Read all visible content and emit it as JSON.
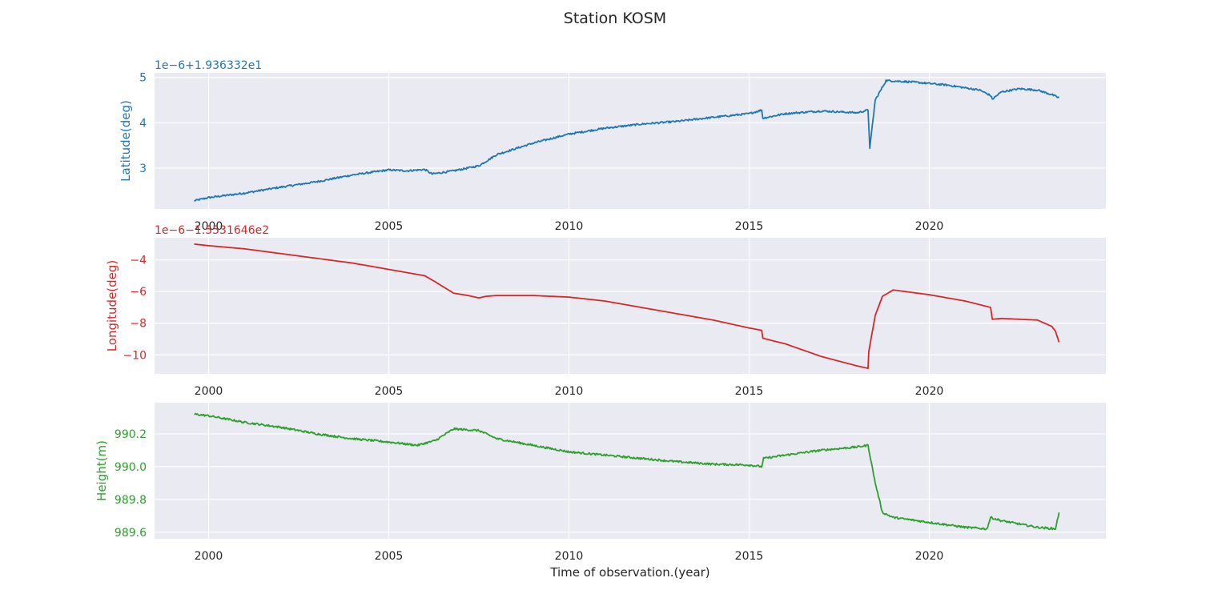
{
  "figure": {
    "title": "Station KOSM",
    "xlabel": "Time of observation.(year)"
  },
  "colors": {
    "panel_bg": "#eaeaf2",
    "grid": "#ffffff",
    "tick_text": "#262626",
    "latitude": "#1f77b4",
    "longitude": "#d62728",
    "height": "#2ca02c"
  },
  "chart_data": [
    {
      "type": "line",
      "ylabel": "Latitude(deg)",
      "offset_label": "1e−6+1.936332e1",
      "color": "#1f77b4",
      "xlim": [
        1998.5,
        2024.9
      ],
      "ylim": [
        2.1,
        5.1
      ],
      "xticks": [
        2000,
        2005,
        2010,
        2015,
        2020
      ],
      "yticks": [
        3,
        4,
        5
      ],
      "grid": true,
      "x": [
        1999.6,
        2000.0,
        2001.0,
        2002.0,
        2003.0,
        2004.0,
        2005.0,
        2005.5,
        2006.0,
        2006.2,
        2006.8,
        2007.5,
        2008.0,
        2009.0,
        2010.0,
        2011.0,
        2012.0,
        2013.0,
        2014.0,
        2015.0,
        2015.35,
        2015.38,
        2016.0,
        2017.0,
        2018.0,
        2018.3,
        2018.35,
        2018.5,
        2018.8,
        2019.5,
        2020.5,
        2021.4,
        2021.7,
        2021.75,
        2022.0,
        2022.5,
        2023.0,
        2023.4,
        2023.6
      ],
      "y": [
        2.28,
        2.35,
        2.45,
        2.58,
        2.7,
        2.85,
        2.96,
        2.94,
        2.97,
        2.87,
        2.94,
        3.05,
        3.3,
        3.55,
        3.75,
        3.88,
        3.97,
        4.03,
        4.12,
        4.2,
        4.28,
        4.1,
        4.2,
        4.26,
        4.22,
        4.28,
        3.45,
        4.5,
        4.93,
        4.9,
        4.83,
        4.72,
        4.6,
        4.52,
        4.68,
        4.75,
        4.72,
        4.62,
        4.55
      ],
      "noise": 0.02,
      "series": [
        {
          "name": "",
          "color": "#1f77b4"
        }
      ]
    },
    {
      "type": "line",
      "ylabel": "Longitude(deg)",
      "offset_label": "1e−6−1.5531646e2",
      "color": "#d62728",
      "xlim": [
        1998.5,
        2024.9
      ],
      "ylim": [
        -11.2,
        -2.6
      ],
      "xticks": [
        2000,
        2005,
        2010,
        2015,
        2020
      ],
      "yticks": [
        -4,
        -6,
        -8,
        -10
      ],
      "grid": true,
      "x": [
        1999.6,
        2000.0,
        2001.0,
        2002.0,
        2003.0,
        2004.0,
        2005.0,
        2006.0,
        2006.3,
        2006.8,
        2007.2,
        2007.5,
        2007.7,
        2008.0,
        2009.0,
        2010.0,
        2011.0,
        2012.0,
        2013.0,
        2014.0,
        2015.0,
        2015.35,
        2015.38,
        2016.0,
        2017.0,
        2018.0,
        2018.3,
        2018.32,
        2018.5,
        2018.7,
        2019.0,
        2020.0,
        2021.0,
        2021.7,
        2021.75,
        2022.0,
        2023.0,
        2023.4,
        2023.5,
        2023.6
      ],
      "y": [
        -3.0,
        -3.1,
        -3.3,
        -3.6,
        -3.9,
        -4.2,
        -4.6,
        -5.0,
        -5.4,
        -6.1,
        -6.25,
        -6.4,
        -6.3,
        -6.25,
        -6.25,
        -6.35,
        -6.6,
        -7.0,
        -7.4,
        -7.8,
        -8.3,
        -8.45,
        -8.95,
        -9.3,
        -10.1,
        -10.7,
        -10.85,
        -9.8,
        -7.5,
        -6.3,
        -5.9,
        -6.2,
        -6.6,
        -7.0,
        -7.75,
        -7.7,
        -7.8,
        -8.2,
        -8.5,
        -9.2
      ],
      "noise": 0.0,
      "series": [
        {
          "name": "",
          "color": "#d62728"
        }
      ]
    },
    {
      "type": "line",
      "ylabel": "Height(m)",
      "offset_label": "",
      "color": "#2ca02c",
      "xlim": [
        1998.5,
        2024.9
      ],
      "ylim": [
        989.56,
        990.39
      ],
      "xticks": [
        2000,
        2005,
        2010,
        2015,
        2020
      ],
      "yticks": [
        989.6,
        989.8,
        990.0,
        990.2
      ],
      "grid": true,
      "x": [
        1999.6,
        2000.0,
        2001.0,
        2002.0,
        2003.0,
        2004.0,
        2005.0,
        2005.8,
        2006.3,
        2006.8,
        2007.5,
        2008.0,
        2009.0,
        2010.0,
        2011.0,
        2012.0,
        2013.0,
        2014.0,
        2015.0,
        2015.35,
        2015.4,
        2016.0,
        2017.0,
        2018.0,
        2018.3,
        2018.5,
        2018.7,
        2019.0,
        2020.0,
        2021.0,
        2021.6,
        2021.7,
        2022.0,
        2022.5,
        2023.0,
        2023.5,
        2023.6
      ],
      "y": [
        990.32,
        990.31,
        990.27,
        990.24,
        990.2,
        990.17,
        990.15,
        990.13,
        990.16,
        990.23,
        990.22,
        990.17,
        990.13,
        990.09,
        990.07,
        990.05,
        990.03,
        990.015,
        990.01,
        990.0,
        990.05,
        990.07,
        990.1,
        990.12,
        990.13,
        989.9,
        989.72,
        989.69,
        989.66,
        989.63,
        989.62,
        989.69,
        989.67,
        989.65,
        989.63,
        989.62,
        989.72
      ],
      "noise": 0.006,
      "series": [
        {
          "name": "",
          "color": "#2ca02c"
        }
      ]
    }
  ]
}
